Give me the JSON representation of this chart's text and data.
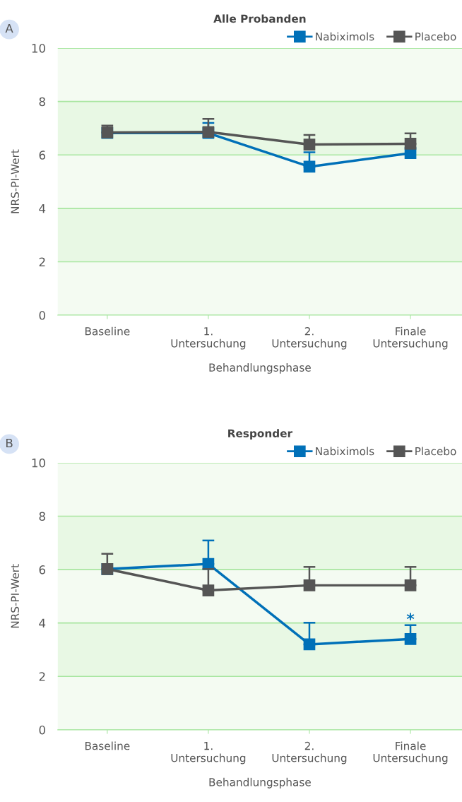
{
  "chart_data": [
    {
      "type": "line",
      "title": "Alle Probanden",
      "xlabel": "Behandlungsphase",
      "ylabel": "NRS-PI-Wert",
      "annotations": [
        "A"
      ],
      "categories": [
        "Baseline",
        "1.\nUntersuchung",
        "2.\nUntersuchung",
        "Finale\nUntersuchung"
      ],
      "series": [
        {
          "name": "Nabiximols",
          "color": "#0070b8",
          "values": [
            6.82,
            6.82,
            5.56,
            6.07
          ],
          "errors": [
            null,
            [
              6.82,
              7.2
            ],
            [
              5.56,
              6.1
            ],
            null
          ]
        },
        {
          "name": "Placebo",
          "color": "#555555",
          "values": [
            6.84,
            6.86,
            6.39,
            6.42
          ],
          "errors": [
            [
              6.84,
              7.1
            ],
            [
              6.86,
              7.35
            ],
            [
              6.39,
              6.75
            ],
            [
              6.42,
              6.81
            ]
          ]
        }
      ],
      "ylim": [
        0,
        10
      ],
      "yticks": [
        0,
        2,
        4,
        6,
        8,
        10
      ],
      "grid": "y",
      "legend": "top right",
      "marker": "square",
      "line_style": "solid",
      "bands": [
        {
          "axis": "y",
          "from": 2,
          "to": 4,
          "color": "#e8f8e4"
        },
        {
          "axis": "y",
          "from": 6,
          "to": 8,
          "color": "#e8f8e4"
        }
      ]
    },
    {
      "type": "line",
      "title": "Responder",
      "xlabel": "Behandlungsphase",
      "ylabel": "NRS-PI-Wert",
      "annotations": [
        "B",
        {
          "text": "*",
          "x": "Finale\nUntersuchung",
          "y": 4.1
        }
      ],
      "categories": [
        "Baseline",
        "1.\nUntersuchung",
        "2.\nUntersuchung",
        "Finale\nUntersuchung"
      ],
      "series": [
        {
          "name": "Nabiximols",
          "color": "#0070b8",
          "values": [
            6.02,
            6.21,
            3.2,
            3.4
          ],
          "errors": [
            null,
            [
              6.21,
              7.09
            ],
            [
              3.2,
              4.01
            ],
            [
              3.4,
              3.92
            ]
          ]
        },
        {
          "name": "Placebo",
          "color": "#555555",
          "values": [
            6.02,
            5.22,
            5.41,
            5.41
          ],
          "errors": [
            [
              6.02,
              6.59
            ],
            [
              5.22,
              6.02
            ],
            [
              5.41,
              6.1
            ],
            [
              5.41,
              6.1
            ]
          ]
        }
      ],
      "ylim": [
        0,
        10
      ],
      "yticks": [
        0,
        2,
        4,
        6,
        8,
        10
      ],
      "grid": "y",
      "legend": "top right",
      "marker": "square",
      "line_style": "solid",
      "bands": [
        {
          "axis": "y",
          "from": 2,
          "to": 4,
          "color": "#e8f8e4"
        },
        {
          "axis": "y",
          "from": 6,
          "to": 8,
          "color": "#e8f8e4"
        }
      ]
    }
  ]
}
